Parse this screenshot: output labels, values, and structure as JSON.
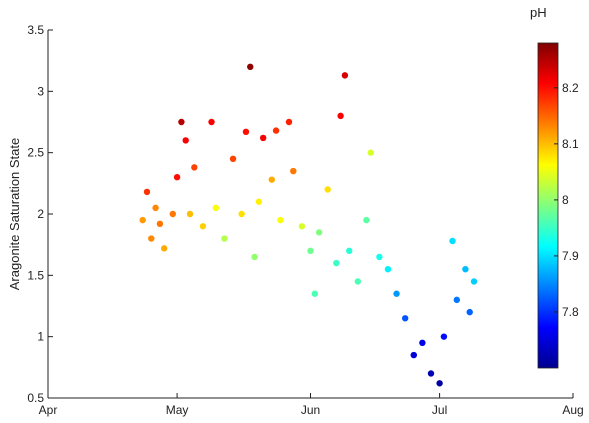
{
  "chart_data": {
    "type": "scatter",
    "ylabel": "Aragonite Saturation State",
    "xlabel": "",
    "x_tick_labels": [
      "Apr",
      "May",
      "Jun",
      "Jul",
      "Aug"
    ],
    "y_ticks": [
      0.5,
      1,
      1.5,
      2,
      2.5,
      3,
      3.5
    ],
    "y_tick_labels": [
      "0.5",
      "1",
      "1.5",
      "2",
      "2.5",
      "3",
      "3.5"
    ],
    "ylim": [
      0.5,
      3.5
    ],
    "xlim": [
      "Apr 1",
      "Aug 1"
    ],
    "grid": false,
    "colorbar": {
      "title": "pH",
      "range": [
        7.7,
        8.28
      ],
      "ticks": [
        7.8,
        7.9,
        8.0,
        8.1,
        8.2
      ],
      "tick_labels": [
        "7.8",
        "7.9",
        "8",
        "8.1",
        "8.2"
      ],
      "colormap": "jet",
      "position": "right"
    },
    "marker_color_encodes": "pH",
    "approximate_points": [
      {
        "date": "Apr 23",
        "aragonite": 1.95,
        "pH": 8.12
      },
      {
        "date": "Apr 24",
        "aragonite": 2.18,
        "pH": 8.18
      },
      {
        "date": "Apr 25",
        "aragonite": 1.8,
        "pH": 8.13
      },
      {
        "date": "Apr 26",
        "aragonite": 2.05,
        "pH": 8.13
      },
      {
        "date": "Apr 27",
        "aragonite": 1.92,
        "pH": 8.14
      },
      {
        "date": "Apr 28",
        "aragonite": 1.72,
        "pH": 8.11
      },
      {
        "date": "Apr 30",
        "aragonite": 2.0,
        "pH": 8.14
      },
      {
        "date": "May 1",
        "aragonite": 2.3,
        "pH": 8.2
      },
      {
        "date": "May 2",
        "aragonite": 2.75,
        "pH": 8.25
      },
      {
        "date": "May 3",
        "aragonite": 2.6,
        "pH": 8.21
      },
      {
        "date": "May 4",
        "aragonite": 2.0,
        "pH": 8.1
      },
      {
        "date": "May 5",
        "aragonite": 2.38,
        "pH": 8.17
      },
      {
        "date": "May 7",
        "aragonite": 1.9,
        "pH": 8.09
      },
      {
        "date": "May 9",
        "aragonite": 2.75,
        "pH": 8.21
      },
      {
        "date": "May 10",
        "aragonite": 2.05,
        "pH": 8.06
      },
      {
        "date": "May 12",
        "aragonite": 1.8,
        "pH": 8.02
      },
      {
        "date": "May 14",
        "aragonite": 2.45,
        "pH": 8.17
      },
      {
        "date": "May 16",
        "aragonite": 2.0,
        "pH": 8.08
      },
      {
        "date": "May 17",
        "aragonite": 2.67,
        "pH": 8.2
      },
      {
        "date": "May 18",
        "aragonite": 3.2,
        "pH": 8.27
      },
      {
        "date": "May 19",
        "aragonite": 1.65,
        "pH": 8.0
      },
      {
        "date": "May 20",
        "aragonite": 2.1,
        "pH": 8.07
      },
      {
        "date": "May 21",
        "aragonite": 2.62,
        "pH": 8.21
      },
      {
        "date": "May 23",
        "aragonite": 2.28,
        "pH": 8.11
      },
      {
        "date": "May 24",
        "aragonite": 2.68,
        "pH": 8.18
      },
      {
        "date": "May 25",
        "aragonite": 1.95,
        "pH": 8.06
      },
      {
        "date": "May 27",
        "aragonite": 2.75,
        "pH": 8.19
      },
      {
        "date": "May 28",
        "aragonite": 2.35,
        "pH": 8.14
      },
      {
        "date": "May 30",
        "aragonite": 1.9,
        "pH": 8.04
      },
      {
        "date": "Jun 1",
        "aragonite": 1.7,
        "pH": 7.98
      },
      {
        "date": "Jun 2",
        "aragonite": 1.35,
        "pH": 7.96
      },
      {
        "date": "Jun 3",
        "aragonite": 1.85,
        "pH": 7.99
      },
      {
        "date": "Jun 5",
        "aragonite": 2.2,
        "pH": 8.08
      },
      {
        "date": "Jun 7",
        "aragonite": 1.6,
        "pH": 7.95
      },
      {
        "date": "Jun 8",
        "aragonite": 2.8,
        "pH": 8.21
      },
      {
        "date": "Jun 9",
        "aragonite": 3.13,
        "pH": 8.23
      },
      {
        "date": "Jun 10",
        "aragonite": 1.7,
        "pH": 7.94
      },
      {
        "date": "Jun 12",
        "aragonite": 1.45,
        "pH": 7.96
      },
      {
        "date": "Jun 14",
        "aragonite": 1.95,
        "pH": 7.97
      },
      {
        "date": "Jun 15",
        "aragonite": 2.5,
        "pH": 8.04
      },
      {
        "date": "Jun 17",
        "aragonite": 1.65,
        "pH": 7.93
      },
      {
        "date": "Jun 19",
        "aragonite": 1.55,
        "pH": 7.91
      },
      {
        "date": "Jun 21",
        "aragonite": 1.35,
        "pH": 7.86
      },
      {
        "date": "Jun 23",
        "aragonite": 1.15,
        "pH": 7.82
      },
      {
        "date": "Jun 25",
        "aragonite": 0.85,
        "pH": 7.75
      },
      {
        "date": "Jun 27",
        "aragonite": 0.95,
        "pH": 7.76
      },
      {
        "date": "Jun 29",
        "aragonite": 0.7,
        "pH": 7.73
      },
      {
        "date": "Jul 1",
        "aragonite": 0.62,
        "pH": 7.72
      },
      {
        "date": "Jul 2",
        "aragonite": 1.0,
        "pH": 7.78
      },
      {
        "date": "Jul 4",
        "aragonite": 1.78,
        "pH": 7.9
      },
      {
        "date": "Jul 5",
        "aragonite": 1.3,
        "pH": 7.84
      },
      {
        "date": "Jul 7",
        "aragonite": 1.55,
        "pH": 7.88
      },
      {
        "date": "Jul 8",
        "aragonite": 1.2,
        "pH": 7.83
      },
      {
        "date": "Jul 9",
        "aragonite": 1.45,
        "pH": 7.89
      }
    ]
  }
}
